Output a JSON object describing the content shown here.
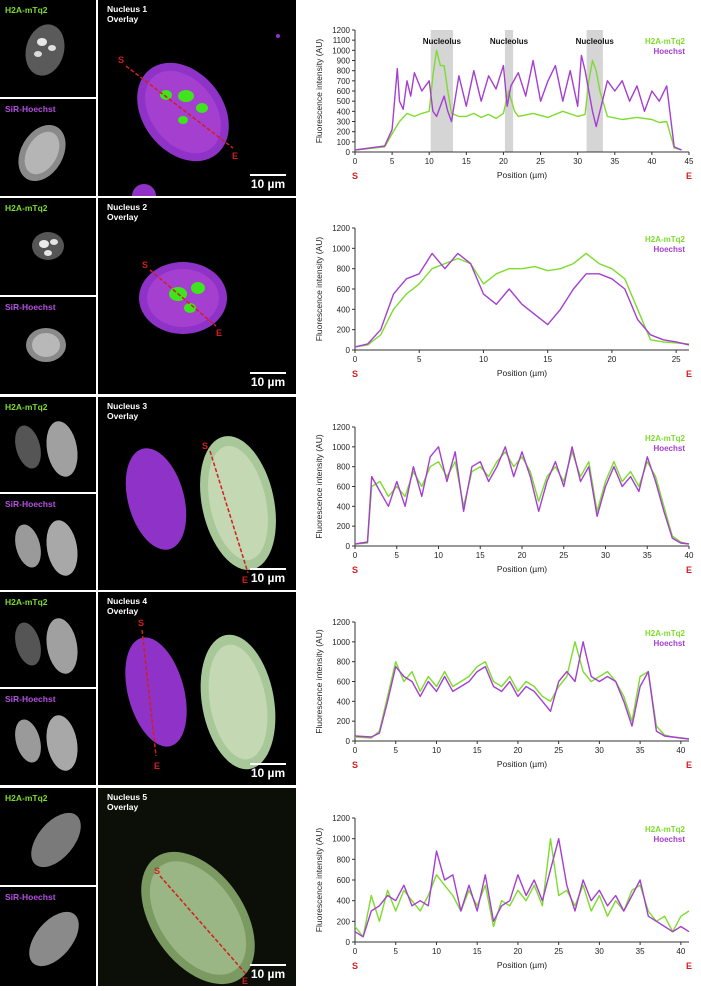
{
  "labels": {
    "green_channel": "H2A-mTq2",
    "magenta_channel": "SiR-Hoechst",
    "overlay_suffix": "Overlay",
    "scale_bar": "10 µm",
    "start_marker": "S",
    "end_marker": "E"
  },
  "colors": {
    "green": "#7ddc2e",
    "magenta": "#a43fd0",
    "marker_red": "#d11f1f",
    "nucleolus_band": "#d5d5d5"
  },
  "panels": [
    {
      "nucleus": "Nucleus 1"
    },
    {
      "nucleus": "Nucleus 2"
    },
    {
      "nucleus": "Nucleus 3"
    },
    {
      "nucleus": "Nucleus 4"
    },
    {
      "nucleus": "Nucleus 5"
    }
  ],
  "chart_data": [
    {
      "type": "line",
      "ylabel": "Fluorescence intensity (AU)",
      "xlabel": "Position (µm)",
      "xlim": [
        0,
        45
      ],
      "ylim": [
        0,
        1200
      ],
      "xticks": [
        0,
        5,
        10,
        15,
        20,
        25,
        30,
        35,
        40,
        45
      ],
      "yticks": [
        0,
        100,
        200,
        300,
        400,
        500,
        600,
        700,
        800,
        900,
        1000,
        1100,
        1200
      ],
      "legend": "top-right",
      "annotations": [
        {
          "text": "Nucleolus",
          "x": [
            10.2,
            13.2
          ]
        },
        {
          "text": "Nucleolus",
          "x": [
            20.2,
            21.3
          ]
        },
        {
          "text": "Nucleolus",
          "x": [
            31.2,
            33.4
          ]
        }
      ],
      "series": [
        {
          "name": "H2A-mTq2",
          "x": [
            0,
            4,
            5,
            6,
            7,
            8,
            9,
            10,
            10.5,
            11,
            11.5,
            12,
            12.5,
            13,
            14,
            15,
            16,
            17,
            18,
            19,
            20,
            20.7,
            21.5,
            22,
            24,
            26,
            28,
            30,
            31,
            31.5,
            32,
            32.5,
            33,
            34,
            36,
            38,
            40,
            41,
            42,
            43,
            44
          ],
          "values": [
            20,
            50,
            180,
            300,
            380,
            350,
            380,
            400,
            750,
            1000,
            850,
            850,
            600,
            380,
            350,
            350,
            380,
            340,
            370,
            330,
            380,
            600,
            400,
            350,
            380,
            340,
            400,
            350,
            370,
            700,
            900,
            800,
            600,
            350,
            320,
            340,
            320,
            290,
            300,
            40,
            20
          ]
        },
        {
          "name": "Hoechst",
          "x": [
            0,
            4,
            5,
            5.7,
            6,
            6.5,
            7,
            7.5,
            8,
            9,
            10,
            10.5,
            11,
            12,
            12.5,
            13,
            14,
            15,
            16,
            17,
            18,
            19,
            20,
            20.5,
            21,
            22,
            23,
            24,
            25,
            26,
            27,
            28,
            29,
            30,
            30.5,
            31,
            31.5,
            32,
            32.5,
            33,
            34,
            35,
            36,
            37,
            38,
            39,
            40,
            41,
            42,
            43,
            44
          ],
          "values": [
            20,
            60,
            220,
            820,
            500,
            420,
            700,
            550,
            780,
            600,
            700,
            400,
            350,
            550,
            400,
            300,
            750,
            450,
            800,
            500,
            750,
            620,
            850,
            450,
            650,
            780,
            550,
            900,
            500,
            700,
            850,
            500,
            800,
            450,
            950,
            800,
            600,
            400,
            250,
            400,
            700,
            600,
            700,
            500,
            650,
            400,
            600,
            500,
            650,
            50,
            20
          ]
        }
      ]
    },
    {
      "type": "line",
      "ylabel": "Fluorescence intensity (AU)",
      "xlabel": "Position (µm)",
      "xlim": [
        0,
        26
      ],
      "ylim": [
        0,
        1200
      ],
      "xticks": [
        0,
        5,
        10,
        15,
        20,
        25
      ],
      "yticks": [
        0,
        200,
        400,
        600,
        800,
        1000,
        1200
      ],
      "legend": "top-right",
      "series": [
        {
          "name": "H2A-mTq2",
          "x": [
            0,
            1,
            2,
            3,
            4,
            5,
            6,
            7,
            8,
            9,
            10,
            11,
            12,
            13,
            14,
            15,
            16,
            17,
            18,
            19,
            20,
            21,
            22,
            23,
            24,
            25,
            26
          ],
          "values": [
            30,
            50,
            150,
            400,
            550,
            650,
            800,
            850,
            900,
            850,
            650,
            750,
            800,
            800,
            820,
            780,
            800,
            850,
            950,
            850,
            800,
            700,
            400,
            100,
            80,
            70,
            60
          ]
        },
        {
          "name": "Hoechst",
          "x": [
            0,
            1,
            2,
            3,
            4,
            5,
            6,
            7,
            8,
            9,
            10,
            11,
            12,
            13,
            14,
            15,
            16,
            17,
            18,
            19,
            20,
            21,
            22,
            23,
            24,
            25,
            26
          ],
          "values": [
            30,
            60,
            200,
            550,
            700,
            750,
            950,
            800,
            950,
            850,
            550,
            450,
            600,
            450,
            350,
            250,
            400,
            600,
            750,
            750,
            700,
            600,
            300,
            150,
            100,
            80,
            50
          ]
        }
      ]
    },
    {
      "type": "line",
      "ylabel": "Fluorescence intensity (AU)",
      "xlabel": "Position (µm)",
      "xlim": [
        0,
        40
      ],
      "ylim": [
        0,
        1200
      ],
      "xticks": [
        0,
        5,
        10,
        15,
        20,
        25,
        30,
        35,
        40
      ],
      "yticks": [
        0,
        200,
        400,
        600,
        800,
        1000,
        1200
      ],
      "legend": "top-right",
      "series": [
        {
          "name": "H2A-mTq2",
          "x": [
            0,
            1.5,
            2,
            3,
            4,
            5,
            6,
            7,
            8,
            9,
            10,
            11,
            12,
            13,
            14,
            15,
            16,
            17,
            18,
            19,
            20,
            21,
            22,
            23,
            24,
            25,
            26,
            27,
            28,
            29,
            30,
            31,
            32,
            33,
            34,
            35,
            36,
            37,
            38,
            39,
            40
          ],
          "values": [
            20,
            30,
            600,
            650,
            500,
            600,
            500,
            750,
            600,
            800,
            850,
            700,
            850,
            400,
            750,
            800,
            700,
            850,
            950,
            800,
            900,
            750,
            450,
            700,
            800,
            650,
            950,
            700,
            850,
            350,
            650,
            850,
            650,
            750,
            600,
            850,
            700,
            400,
            100,
            40,
            20
          ]
        },
        {
          "name": "Hoechst",
          "x": [
            0,
            1.5,
            2,
            3,
            4,
            5,
            6,
            7,
            8,
            9,
            10,
            11,
            12,
            13,
            14,
            15,
            16,
            17,
            18,
            19,
            20,
            21,
            22,
            23,
            24,
            25,
            26,
            27,
            28,
            29,
            30,
            31,
            32,
            33,
            34,
            35,
            36,
            37,
            38,
            39,
            40
          ],
          "values": [
            20,
            40,
            700,
            550,
            400,
            650,
            400,
            800,
            500,
            900,
            1000,
            650,
            950,
            350,
            800,
            850,
            650,
            800,
            1000,
            700,
            950,
            700,
            350,
            650,
            850,
            600,
            1000,
            650,
            800,
            300,
            600,
            800,
            600,
            700,
            550,
            900,
            650,
            350,
            80,
            30,
            20
          ]
        }
      ]
    },
    {
      "type": "line",
      "ylabel": "Fluorescence intensity (AU)",
      "xlabel": "Position (µm)",
      "xlim": [
        0,
        41
      ],
      "ylim": [
        0,
        1200
      ],
      "xticks": [
        0,
        5,
        10,
        15,
        20,
        25,
        30,
        35,
        40
      ],
      "yticks": [
        0,
        200,
        400,
        600,
        800,
        1000,
        1200
      ],
      "legend": "top-right",
      "series": [
        {
          "name": "H2A-mTq2",
          "x": [
            0,
            2,
            3,
            4,
            5,
            6,
            7,
            8,
            9,
            10,
            11,
            12,
            13,
            14,
            15,
            16,
            17,
            18,
            19,
            20,
            21,
            22,
            23,
            24,
            25,
            26,
            27,
            28,
            29,
            30,
            31,
            32,
            33,
            34,
            35,
            36,
            37,
            38,
            39,
            40,
            41
          ],
          "values": [
            40,
            30,
            100,
            450,
            800,
            600,
            700,
            500,
            650,
            550,
            700,
            550,
            600,
            650,
            750,
            800,
            600,
            550,
            650,
            500,
            600,
            550,
            450,
            400,
            550,
            650,
            1000,
            700,
            600,
            650,
            700,
            600,
            450,
            200,
            650,
            700,
            150,
            60,
            40,
            30,
            20
          ]
        },
        {
          "name": "Hoechst",
          "x": [
            0,
            2,
            3,
            4,
            5,
            6,
            7,
            8,
            9,
            10,
            11,
            12,
            13,
            14,
            15,
            16,
            17,
            18,
            19,
            20,
            21,
            22,
            23,
            24,
            25,
            26,
            27,
            28,
            29,
            30,
            31,
            32,
            33,
            34,
            35,
            36,
            37,
            38,
            39,
            40,
            41
          ],
          "values": [
            50,
            40,
            80,
            400,
            750,
            650,
            600,
            450,
            600,
            500,
            650,
            500,
            550,
            600,
            700,
            750,
            550,
            500,
            600,
            450,
            550,
            500,
            400,
            300,
            600,
            700,
            600,
            1000,
            650,
            600,
            650,
            600,
            400,
            150,
            550,
            700,
            100,
            50,
            40,
            30,
            20
          ]
        }
      ]
    },
    {
      "type": "line",
      "ylabel": "Fluorescence intensity (AU)",
      "xlabel": "Position (µm)",
      "xlim": [
        0,
        41
      ],
      "ylim": [
        0,
        1200
      ],
      "xticks": [
        0,
        5,
        10,
        15,
        20,
        25,
        30,
        35,
        40
      ],
      "yticks": [
        0,
        200,
        400,
        600,
        800,
        1000,
        1200
      ],
      "legend": "top-right",
      "series": [
        {
          "name": "H2A-mTq2",
          "x": [
            0,
            1,
            2,
            3,
            4,
            5,
            6,
            7,
            8,
            9,
            10,
            11,
            12,
            13,
            14,
            15,
            16,
            17,
            18,
            19,
            20,
            21,
            22,
            23,
            24,
            25,
            26,
            27,
            28,
            29,
            30,
            31,
            32,
            33,
            34,
            35,
            36,
            37,
            38,
            39,
            40,
            41
          ],
          "values": [
            150,
            50,
            450,
            200,
            500,
            300,
            500,
            400,
            300,
            450,
            650,
            550,
            450,
            300,
            500,
            350,
            550,
            150,
            400,
            350,
            500,
            400,
            550,
            350,
            1000,
            450,
            500,
            350,
            550,
            300,
            450,
            250,
            400,
            300,
            500,
            550,
            300,
            200,
            250,
            100,
            250,
            300
          ]
        },
        {
          "name": "Hoechst",
          "x": [
            0,
            1,
            2,
            3,
            4,
            5,
            6,
            7,
            8,
            9,
            10,
            11,
            12,
            13,
            14,
            15,
            16,
            17,
            18,
            19,
            20,
            21,
            22,
            23,
            24,
            25,
            26,
            27,
            28,
            29,
            30,
            31,
            32,
            33,
            34,
            35,
            36,
            37,
            38,
            39,
            40,
            41
          ],
          "values": [
            100,
            50,
            300,
            350,
            450,
            400,
            550,
            350,
            400,
            350,
            880,
            600,
            650,
            300,
            550,
            300,
            650,
            200,
            350,
            400,
            650,
            450,
            600,
            400,
            700,
            1000,
            550,
            300,
            600,
            400,
            500,
            350,
            450,
            300,
            450,
            600,
            250,
            200,
            150,
            100,
            150,
            100
          ]
        }
      ]
    }
  ]
}
